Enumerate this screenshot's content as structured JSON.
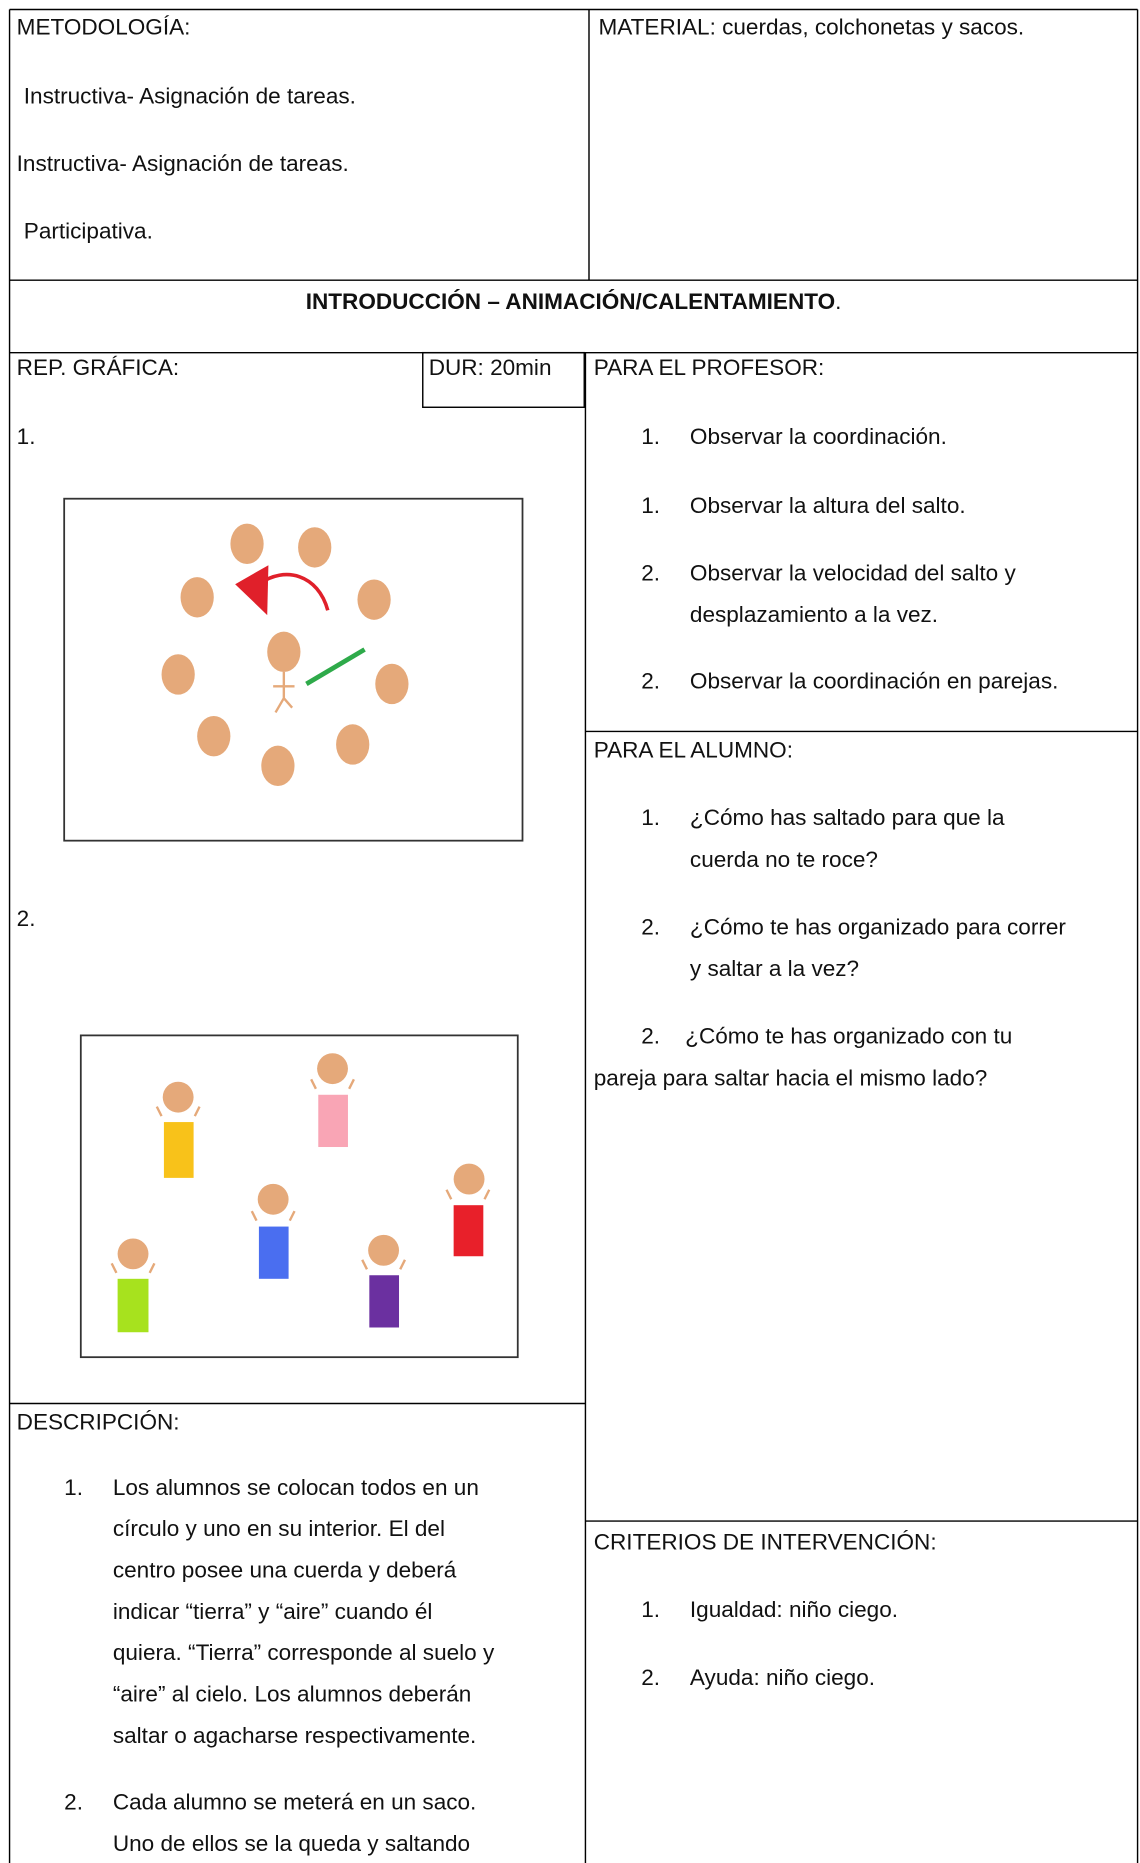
{
  "metodologia": {
    "label": "METODOLOGÍA:",
    "items": [
      "Instructiva- Asignación de tareas.",
      "Instructiva- Asignación de tareas.",
      "Participativa."
    ]
  },
  "material": "MATERIAL: cuerdas, colchonetas y sacos.",
  "section": {
    "title": "INTRODUCCIÓN – ANIMACIÓN/CALENTAMIENTO",
    "end": "."
  },
  "rep_grafica": {
    "label": "REP. GRÁFICA:",
    "duration": "DUR: 20min",
    "figures": [
      "1.",
      "2."
    ]
  },
  "profesor": {
    "label": "PARA EL PROFESOR:",
    "items": [
      {
        "number": "1.",
        "lines": [
          "Observar la coordinación."
        ]
      },
      {
        "number": "1.",
        "lines": [
          "Observar la altura del salto."
        ]
      },
      {
        "number": "2.",
        "lines": [
          "Observar la velocidad del salto y",
          "desplazamiento a la vez."
        ]
      },
      {
        "number": "2.",
        "lines": [
          "Observar la coordinación en parejas."
        ]
      }
    ]
  },
  "alumno": {
    "label": "PARA EL ALUMNO:",
    "items": [
      {
        "number": "1.",
        "lines": [
          "¿Cómo has saltado para que la",
          "cuerda no te roce?"
        ]
      },
      {
        "number": "2.",
        "lines": [
          "¿Cómo te has organizado para correr",
          "y saltar a la vez?"
        ]
      },
      {
        "number": "2.",
        "lines": [
          "¿Cómo te has organizado con tu",
          "pareja para saltar hacia el mismo lado?"
        ]
      }
    ]
  },
  "criterios": {
    "label": "CRITERIOS DE INTERVENCIÓN:",
    "items": [
      {
        "number": "1.",
        "lines": [
          "Igualdad: niño ciego."
        ]
      },
      {
        "number": "2.",
        "lines": [
          "Ayuda: niño ciego."
        ]
      }
    ]
  },
  "descripcion": {
    "label": "DESCRIPCIÓN:",
    "items": [
      {
        "number": "1.",
        "lines": [
          "Los alumnos se colocan todos en un",
          "círculo y uno en su interior. El del",
          "centro posee una cuerda y deberá",
          "indicar “tierra” y “aire” cuando él",
          "quiera. “Tierra” corresponde al suelo y",
          "“aire” al cielo. Los alumnos deberán",
          "saltar o agacharse respectivamente."
        ]
      },
      {
        "number": "2.",
        "lines": [
          "Cada alumno se meterá en un saco.",
          "Uno de ellos se la queda y saltando"
        ]
      }
    ]
  }
}
